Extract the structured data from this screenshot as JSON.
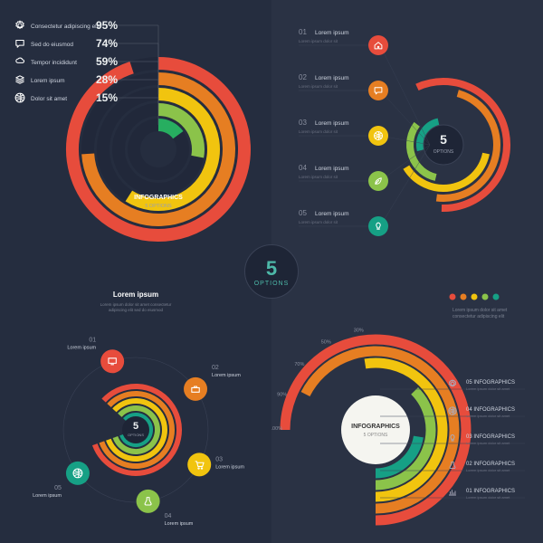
{
  "center": {
    "number": "5",
    "label": "OPTIONS"
  },
  "colors": {
    "red": "#e74c3c",
    "orange": "#e67e22",
    "yellow": "#f1c40f",
    "green": "#8bc34a",
    "darkgreen": "#27ae60",
    "teal": "#16a085",
    "bg": "#2a3244",
    "bg2": "#252d3f",
    "text": "#ecf0f1",
    "muted": "#7a8294"
  },
  "panel1": {
    "type": "radial-bar",
    "title": "INFOGRAPHICS",
    "subtitle": "5 OPTIONS",
    "rows": [
      {
        "icon": "gear",
        "label": "Consectetur adipiscing elit",
        "pct": 95,
        "color": "#e74c3c"
      },
      {
        "icon": "chat",
        "label": "Sed do eiusmod",
        "pct": 74,
        "color": "#e67e22"
      },
      {
        "icon": "cloud",
        "label": "Tempor incididunt",
        "pct": 59,
        "color": "#f1c40f"
      },
      {
        "icon": "layers",
        "label": "Lorem ipsum",
        "pct": 28,
        "color": "#8bc34a"
      },
      {
        "icon": "globe",
        "label": "Dolor sit amet",
        "pct": 15,
        "color": "#27ae60"
      }
    ]
  },
  "panel2": {
    "type": "concentric-arcs",
    "center_num": "5",
    "center_label": "OPTIONS",
    "items": [
      {
        "num": "01",
        "label": "Lorem ipsum",
        "color": "#e74c3c",
        "icon": "home"
      },
      {
        "num": "02",
        "label": "Lorem ipsum",
        "color": "#e67e22",
        "icon": "chat"
      },
      {
        "num": "03",
        "label": "Lorem ipsum",
        "color": "#f1c40f",
        "icon": "globe"
      },
      {
        "num": "04",
        "label": "Lorem ipsum",
        "color": "#8bc34a",
        "icon": "leaf"
      },
      {
        "num": "05",
        "label": "Lorem ipsum",
        "color": "#16a085",
        "icon": "bulb"
      }
    ]
  },
  "panel3": {
    "type": "orbit",
    "center_num": "5",
    "center_label": "OPTIONS",
    "title": "Lorem ipsum",
    "items": [
      {
        "num": "01",
        "label": "Lorem ipsum",
        "color": "#e74c3c",
        "icon": "monitor"
      },
      {
        "num": "02",
        "label": "Lorem ipsum",
        "color": "#e67e22",
        "icon": "briefcase"
      },
      {
        "num": "03",
        "label": "Lorem ipsum",
        "color": "#f1c40f",
        "icon": "cart"
      },
      {
        "num": "04",
        "label": "Lorem ipsum",
        "color": "#8bc34a",
        "icon": "beaker"
      },
      {
        "num": "05",
        "label": "Lorem ipsum",
        "color": "#16a085",
        "icon": "globe"
      }
    ]
  },
  "panel4": {
    "type": "rainbow-arc",
    "center_title": "INFOGRAPHICS",
    "center_sub": "5 OPTIONS",
    "ticks": [
      "100%",
      "90%",
      "70%",
      "50%",
      "30%"
    ],
    "items": [
      {
        "num": "05",
        "label": "INFOGRAPHICS",
        "color": "#e74c3c",
        "icon": "gear",
        "pct": 100
      },
      {
        "num": "04",
        "label": "INFOGRAPHICS",
        "color": "#e67e22",
        "icon": "globe",
        "pct": 90
      },
      {
        "num": "03",
        "label": "INFOGRAPHICS",
        "color": "#f1c40f",
        "icon": "bulb",
        "pct": 70
      },
      {
        "num": "02",
        "label": "INFOGRAPHICS",
        "color": "#8bc34a",
        "icon": "beaker",
        "pct": 50
      },
      {
        "num": "01",
        "label": "INFOGRAPHICS",
        "color": "#16a085",
        "icon": "chart",
        "pct": 30
      }
    ]
  }
}
